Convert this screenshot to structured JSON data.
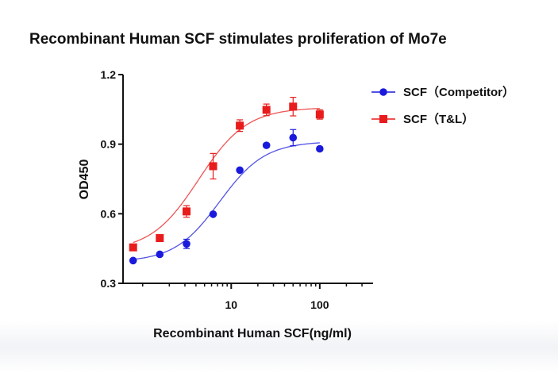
{
  "chart_data": {
    "type": "scatter",
    "title": "Recombinant Human SCF stimulates proliferation of Mo7e",
    "xlabel": "Recombinant Human SCF(ng/ml)",
    "ylabel": "OD450",
    "xscale": "log",
    "xlim": [
      0.6,
      400
    ],
    "ylim": [
      0.3,
      1.2
    ],
    "xticks": [
      {
        "value": 10,
        "label": "10"
      },
      {
        "value": 100,
        "label": "100"
      }
    ],
    "yticks": [
      {
        "value": 0.3,
        "label": "0.3"
      },
      {
        "value": 0.6,
        "label": "0.6"
      },
      {
        "value": 0.9,
        "label": "0.9"
      },
      {
        "value": 1.2,
        "label": "1.2"
      }
    ],
    "legend_position": "top-right",
    "grid": false,
    "series": [
      {
        "name": "SCF（Competitor）",
        "color": "#1a1adc",
        "marker": "circle",
        "x": [
          0.78,
          1.56,
          3.13,
          6.25,
          12.5,
          25,
          50,
          100
        ],
        "y": [
          0.398,
          0.425,
          0.47,
          0.598,
          0.788,
          0.895,
          0.928,
          0.88
        ],
        "err": [
          0.005,
          0.005,
          0.02,
          0.006,
          0.005,
          0.008,
          0.035,
          0.007
        ],
        "fit": {
          "bottom": 0.392,
          "top": 0.912,
          "ec50": 7.4,
          "hill": 1.7
        }
      },
      {
        "name": "SCF（T&L）",
        "color": "#e81c1c",
        "marker": "square",
        "x": [
          0.78,
          1.56,
          3.13,
          6.25,
          12.5,
          25,
          50,
          100
        ],
        "y": [
          0.455,
          0.495,
          0.61,
          0.805,
          0.98,
          1.048,
          1.062,
          1.028
        ],
        "err": [
          0.004,
          0.004,
          0.025,
          0.055,
          0.025,
          0.025,
          0.04,
          0.02
        ],
        "fit": {
          "bottom": 0.438,
          "top": 1.058,
          "ec50": 4.3,
          "hill": 1.6
        }
      }
    ]
  }
}
